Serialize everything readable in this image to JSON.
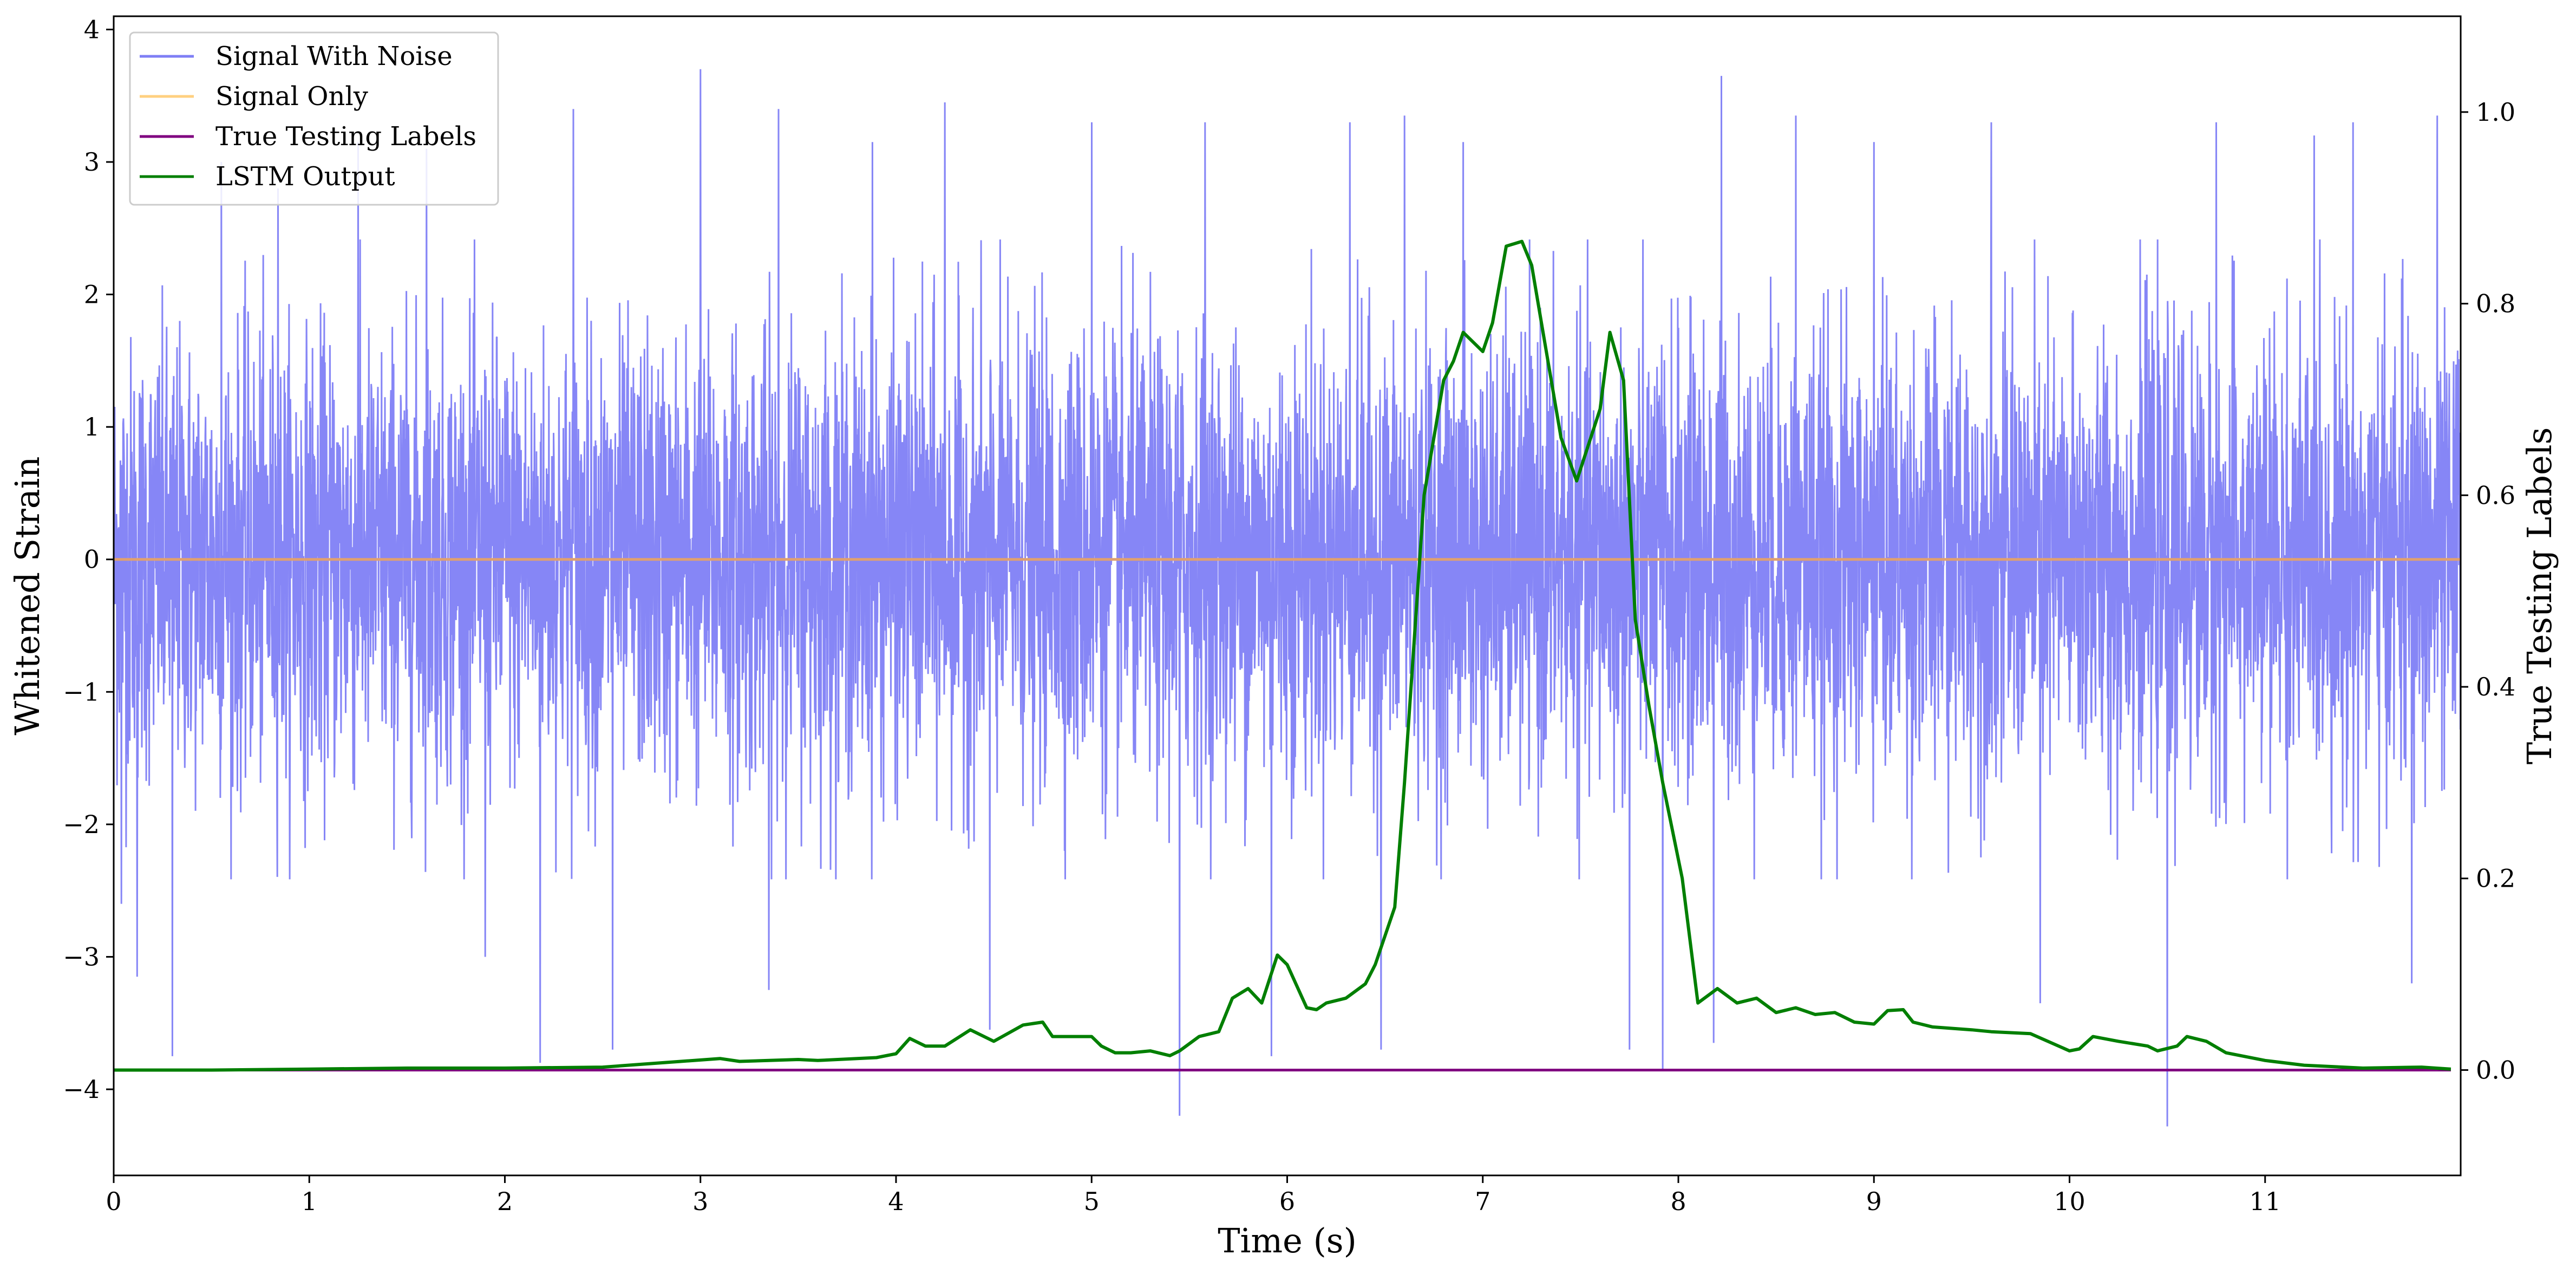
{
  "chart_data": {
    "type": "line",
    "xlabel": "Time (s)",
    "ylabel": "Whitened Strain",
    "y2label": "True Testing Labels",
    "xlim": [
      0,
      12
    ],
    "ylim": [
      -4.65,
      4.1
    ],
    "y2lim": [
      -0.11,
      1.1
    ],
    "xticks": [
      "0",
      "1",
      "2",
      "3",
      "4",
      "5",
      "6",
      "7",
      "8",
      "9",
      "10",
      "11"
    ],
    "yticks": [
      "4",
      "3",
      "2",
      "1",
      "0",
      "−1",
      "−2",
      "−3",
      "−4"
    ],
    "y2ticks": [
      "1.0",
      "0.8",
      "0.6",
      "0.4",
      "0.2",
      "0.0"
    ],
    "legend": {
      "placement": "top-left",
      "entries": [
        {
          "name": "Signal With Noise",
          "color": "#7f7ff5"
        },
        {
          "name": "Signal Only",
          "color": "#ffd080"
        },
        {
          "name": "True Testing Labels",
          "color": "#800080"
        },
        {
          "name": "LSTM Output",
          "color": "#007f00"
        }
      ]
    },
    "series": [
      {
        "name": "Signal With Noise",
        "axis": "left",
        "color": "#7f7ff5",
        "note": "dense noise approx. between -2.3 and 2.3 with spikes up to 3.7 and down to -4.3",
        "amplitude": 2.3,
        "spikes": [
          [
            0.04,
            -2.6
          ],
          [
            0.12,
            -3.15
          ],
          [
            0.3,
            -3.75
          ],
          [
            0.55,
            3.0
          ],
          [
            0.84,
            2.8
          ],
          [
            1.25,
            3.15
          ],
          [
            1.6,
            3.1
          ],
          [
            1.9,
            -3.0
          ],
          [
            2.18,
            -3.8
          ],
          [
            2.35,
            3.4
          ],
          [
            2.55,
            -3.7
          ],
          [
            3.0,
            3.7
          ],
          [
            3.4,
            3.4
          ],
          [
            3.35,
            -3.25
          ],
          [
            3.88,
            3.15
          ],
          [
            4.25,
            3.45
          ],
          [
            4.48,
            -3.55
          ],
          [
            5.0,
            3.3
          ],
          [
            5.45,
            -4.2
          ],
          [
            5.58,
            3.3
          ],
          [
            5.92,
            -3.75
          ],
          [
            6.32,
            3.3
          ],
          [
            6.48,
            -3.7
          ],
          [
            6.6,
            3.35
          ],
          [
            6.9,
            3.15
          ],
          [
            7.75,
            -3.7
          ],
          [
            7.92,
            -3.85
          ],
          [
            8.18,
            -3.65
          ],
          [
            8.22,
            3.65
          ],
          [
            8.6,
            3.35
          ],
          [
            9.0,
            3.15
          ],
          [
            9.6,
            3.3
          ],
          [
            9.85,
            -3.35
          ],
          [
            10.5,
            -4.28
          ],
          [
            10.75,
            3.3
          ],
          [
            11.25,
            3.2
          ],
          [
            11.45,
            3.3
          ],
          [
            11.75,
            -3.2
          ],
          [
            11.88,
            3.35
          ]
        ]
      },
      {
        "name": "Signal Only",
        "axis": "left",
        "color": "#ffd080",
        "x": [
          0,
          12
        ],
        "y": [
          0,
          0
        ]
      },
      {
        "name": "True Testing Labels",
        "axis": "right",
        "color": "#800080",
        "x": [
          0,
          11.95
        ],
        "y": [
          0,
          0
        ]
      },
      {
        "name": "LSTM Output",
        "axis": "right",
        "color": "#007f00",
        "x": [
          0,
          0.5,
          1.0,
          1.5,
          2.0,
          2.5,
          2.7,
          2.9,
          3.1,
          3.2,
          3.5,
          3.6,
          3.9,
          4.0,
          4.07,
          4.15,
          4.25,
          4.38,
          4.5,
          4.65,
          4.75,
          4.8,
          5.0,
          5.05,
          5.12,
          5.2,
          5.3,
          5.4,
          5.45,
          5.55,
          5.65,
          5.72,
          5.8,
          5.87,
          5.95,
          6.0,
          6.1,
          6.15,
          6.2,
          6.3,
          6.4,
          6.45,
          6.55,
          6.6,
          6.7,
          6.8,
          6.85,
          6.9,
          7.0,
          7.05,
          7.12,
          7.2,
          7.25,
          7.3,
          7.4,
          7.48,
          7.6,
          7.65,
          7.72,
          7.78,
          7.85,
          7.92,
          8.02,
          8.1,
          8.2,
          8.3,
          8.4,
          8.5,
          8.6,
          8.7,
          8.8,
          8.9,
          9.0,
          9.07,
          9.15,
          9.2,
          9.3,
          9.5,
          9.6,
          9.8,
          10.0,
          10.05,
          10.12,
          10.25,
          10.4,
          10.45,
          10.55,
          10.6,
          10.7,
          10.8,
          11.0,
          11.2,
          11.5,
          11.8,
          11.95
        ],
        "y": [
          0,
          0,
          0.001,
          0.002,
          0.002,
          0.003,
          0.006,
          0.009,
          0.012,
          0.009,
          0.011,
          0.01,
          0.013,
          0.017,
          0.033,
          0.025,
          0.025,
          0.042,
          0.03,
          0.047,
          0.05,
          0.035,
          0.035,
          0.025,
          0.018,
          0.018,
          0.02,
          0.015,
          0.02,
          0.035,
          0.04,
          0.075,
          0.085,
          0.07,
          0.12,
          0.11,
          0.065,
          0.063,
          0.07,
          0.075,
          0.09,
          0.11,
          0.17,
          0.3,
          0.6,
          0.72,
          0.74,
          0.77,
          0.75,
          0.78,
          0.86,
          0.865,
          0.84,
          0.78,
          0.66,
          0.615,
          0.69,
          0.77,
          0.72,
          0.47,
          0.38,
          0.3,
          0.2,
          0.07,
          0.085,
          0.07,
          0.075,
          0.06,
          0.065,
          0.058,
          0.06,
          0.05,
          0.048,
          0.062,
          0.063,
          0.05,
          0.045,
          0.042,
          0.04,
          0.038,
          0.02,
          0.022,
          0.035,
          0.03,
          0.025,
          0.02,
          0.025,
          0.035,
          0.03,
          0.018,
          0.01,
          0.005,
          0.002,
          0.003,
          0.001
        ]
      }
    ]
  }
}
